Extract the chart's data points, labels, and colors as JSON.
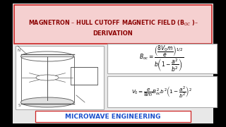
{
  "outer_bg": "#000000",
  "main_bg": "#e8e8e8",
  "title_bg": "#f5d0d0",
  "title_edge": "#cc2222",
  "title_color": "#8b0000",
  "title_line1": "MAGNETRON – HULL CUTOFF MAGNETIC FIELD (B",
  "title_line2": "DERIVATION",
  "footer_bg": "#ffffff",
  "footer_edge": "#cc2222",
  "footer_color": "#1a4fcc",
  "footer_text": "MICROWAVE ENGINEERING",
  "eq_box_bg": "#ffffff",
  "eq_box_edge": "#aaaaaa",
  "img_box_bg": "#ffffff",
  "img_box_edge": "#aaaaaa",
  "sketch_color": "#555555",
  "eq1": "$B_{oc} = \\dfrac{\\left(\\dfrac{8V_0\\,m}{e}\\right)^{1/2}}{b\\left(1 - \\dfrac{a^2}{b^2}\\right)}$",
  "eq2": "$V_0 = \\dfrac{e}{8m}\\,B_{oc}^2\\,b^2\\!\\left(1 - \\dfrac{a^2}{b^2}\\right)^{\\!2}$"
}
